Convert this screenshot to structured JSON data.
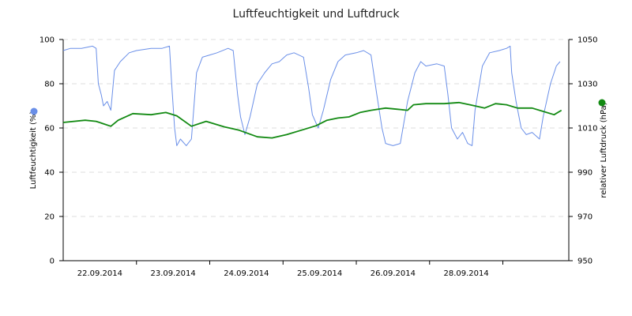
{
  "chart_data": {
    "type": "line",
    "title": "Luftfeuchtigkeit und Luftdruck",
    "y_left": {
      "label": "Luftfeuchtigkeit (%)",
      "range": [
        0,
        100
      ],
      "ticks": [
        "0",
        "20",
        "40",
        "60",
        "80",
        "100"
      ]
    },
    "y_right": {
      "label": "relativer Luftdruck (hPa)",
      "range": [
        950,
        1050
      ],
      "ticks": [
        "950",
        "970",
        "990",
        "1010",
        "1030",
        "1050"
      ]
    },
    "x_tick_labels": [
      "22.09.2014",
      "23.09.2014",
      "24.09.2014",
      "25.09.2014",
      "26.09.2014",
      "28.09.2014"
    ],
    "x_range": [
      0,
      6.9
    ],
    "grid": true,
    "series": [
      {
        "axis": "left",
        "color": "#6a8fe8",
        "legend_marker_color": "#6a8fe8",
        "points": [
          [
            0.0,
            95
          ],
          [
            0.1,
            96
          ],
          [
            0.25,
            96
          ],
          [
            0.4,
            97
          ],
          [
            0.45,
            96
          ],
          [
            0.48,
            80
          ],
          [
            0.52,
            75
          ],
          [
            0.55,
            70
          ],
          [
            0.6,
            72
          ],
          [
            0.65,
            68
          ],
          [
            0.7,
            86
          ],
          [
            0.78,
            90
          ],
          [
            0.9,
            94
          ],
          [
            1.0,
            95
          ],
          [
            1.2,
            96
          ],
          [
            1.35,
            96
          ],
          [
            1.45,
            97
          ],
          [
            1.48,
            80
          ],
          [
            1.52,
            60
          ],
          [
            1.55,
            52
          ],
          [
            1.6,
            55
          ],
          [
            1.68,
            52
          ],
          [
            1.75,
            55
          ],
          [
            1.82,
            85
          ],
          [
            1.9,
            92
          ],
          [
            2.0,
            93
          ],
          [
            2.1,
            94
          ],
          [
            2.25,
            96
          ],
          [
            2.32,
            95
          ],
          [
            2.38,
            75
          ],
          [
            2.42,
            65
          ],
          [
            2.48,
            57
          ],
          [
            2.55,
            65
          ],
          [
            2.65,
            80
          ],
          [
            2.75,
            85
          ],
          [
            2.85,
            89
          ],
          [
            2.95,
            90
          ],
          [
            3.05,
            93
          ],
          [
            3.15,
            94
          ],
          [
            3.28,
            92
          ],
          [
            3.35,
            78
          ],
          [
            3.4,
            66
          ],
          [
            3.48,
            60
          ],
          [
            3.55,
            68
          ],
          [
            3.65,
            82
          ],
          [
            3.75,
            90
          ],
          [
            3.85,
            93
          ],
          [
            4.0,
            94
          ],
          [
            4.1,
            95
          ],
          [
            4.2,
            93
          ],
          [
            4.28,
            75
          ],
          [
            4.35,
            60
          ],
          [
            4.4,
            53
          ],
          [
            4.5,
            52
          ],
          [
            4.6,
            53
          ],
          [
            4.7,
            72
          ],
          [
            4.8,
            85
          ],
          [
            4.88,
            90
          ],
          [
            4.95,
            88
          ],
          [
            5.1,
            89
          ],
          [
            5.2,
            88
          ],
          [
            5.25,
            75
          ],
          [
            5.3,
            60
          ],
          [
            5.38,
            55
          ],
          [
            5.45,
            58
          ],
          [
            5.52,
            53
          ],
          [
            5.58,
            52
          ],
          [
            5.62,
            68
          ],
          [
            5.72,
            88
          ],
          [
            5.82,
            94
          ],
          [
            5.95,
            95
          ],
          [
            6.05,
            96
          ],
          [
            6.1,
            97
          ],
          [
            6.12,
            85
          ],
          [
            6.18,
            72
          ],
          [
            6.25,
            60
          ],
          [
            6.32,
            57
          ],
          [
            6.4,
            58
          ],
          [
            6.5,
            55
          ],
          [
            6.55,
            65
          ],
          [
            6.65,
            80
          ],
          [
            6.73,
            88
          ],
          [
            6.78,
            90
          ]
        ]
      },
      {
        "axis": "right",
        "color": "#138a13",
        "legend_marker_color": "#138a13",
        "points": [
          [
            0.0,
            1012.5
          ],
          [
            0.3,
            1013.5
          ],
          [
            0.45,
            1013.0
          ],
          [
            0.65,
            1010.8
          ],
          [
            0.75,
            1013.5
          ],
          [
            0.95,
            1016.5
          ],
          [
            1.2,
            1016.0
          ],
          [
            1.4,
            1017.0
          ],
          [
            1.55,
            1015.5
          ],
          [
            1.75,
            1010.8
          ],
          [
            1.95,
            1013.0
          ],
          [
            2.2,
            1010.5
          ],
          [
            2.4,
            1009.0
          ],
          [
            2.65,
            1006.0
          ],
          [
            2.85,
            1005.5
          ],
          [
            3.05,
            1007.0
          ],
          [
            3.25,
            1009.0
          ],
          [
            3.45,
            1011.0
          ],
          [
            3.6,
            1013.5
          ],
          [
            3.75,
            1014.5
          ],
          [
            3.9,
            1015.0
          ],
          [
            4.05,
            1017.0
          ],
          [
            4.2,
            1018.0
          ],
          [
            4.4,
            1019.0
          ],
          [
            4.55,
            1018.5
          ],
          [
            4.7,
            1018.0
          ],
          [
            4.78,
            1020.5
          ],
          [
            4.95,
            1021.0
          ],
          [
            5.2,
            1021.0
          ],
          [
            5.4,
            1021.5
          ],
          [
            5.55,
            1020.5
          ],
          [
            5.75,
            1019.0
          ],
          [
            5.9,
            1021.0
          ],
          [
            6.05,
            1020.5
          ],
          [
            6.2,
            1019.0
          ],
          [
            6.4,
            1019.0
          ],
          [
            6.55,
            1017.5
          ],
          [
            6.7,
            1016.0
          ],
          [
            6.8,
            1018.0
          ]
        ]
      }
    ]
  }
}
